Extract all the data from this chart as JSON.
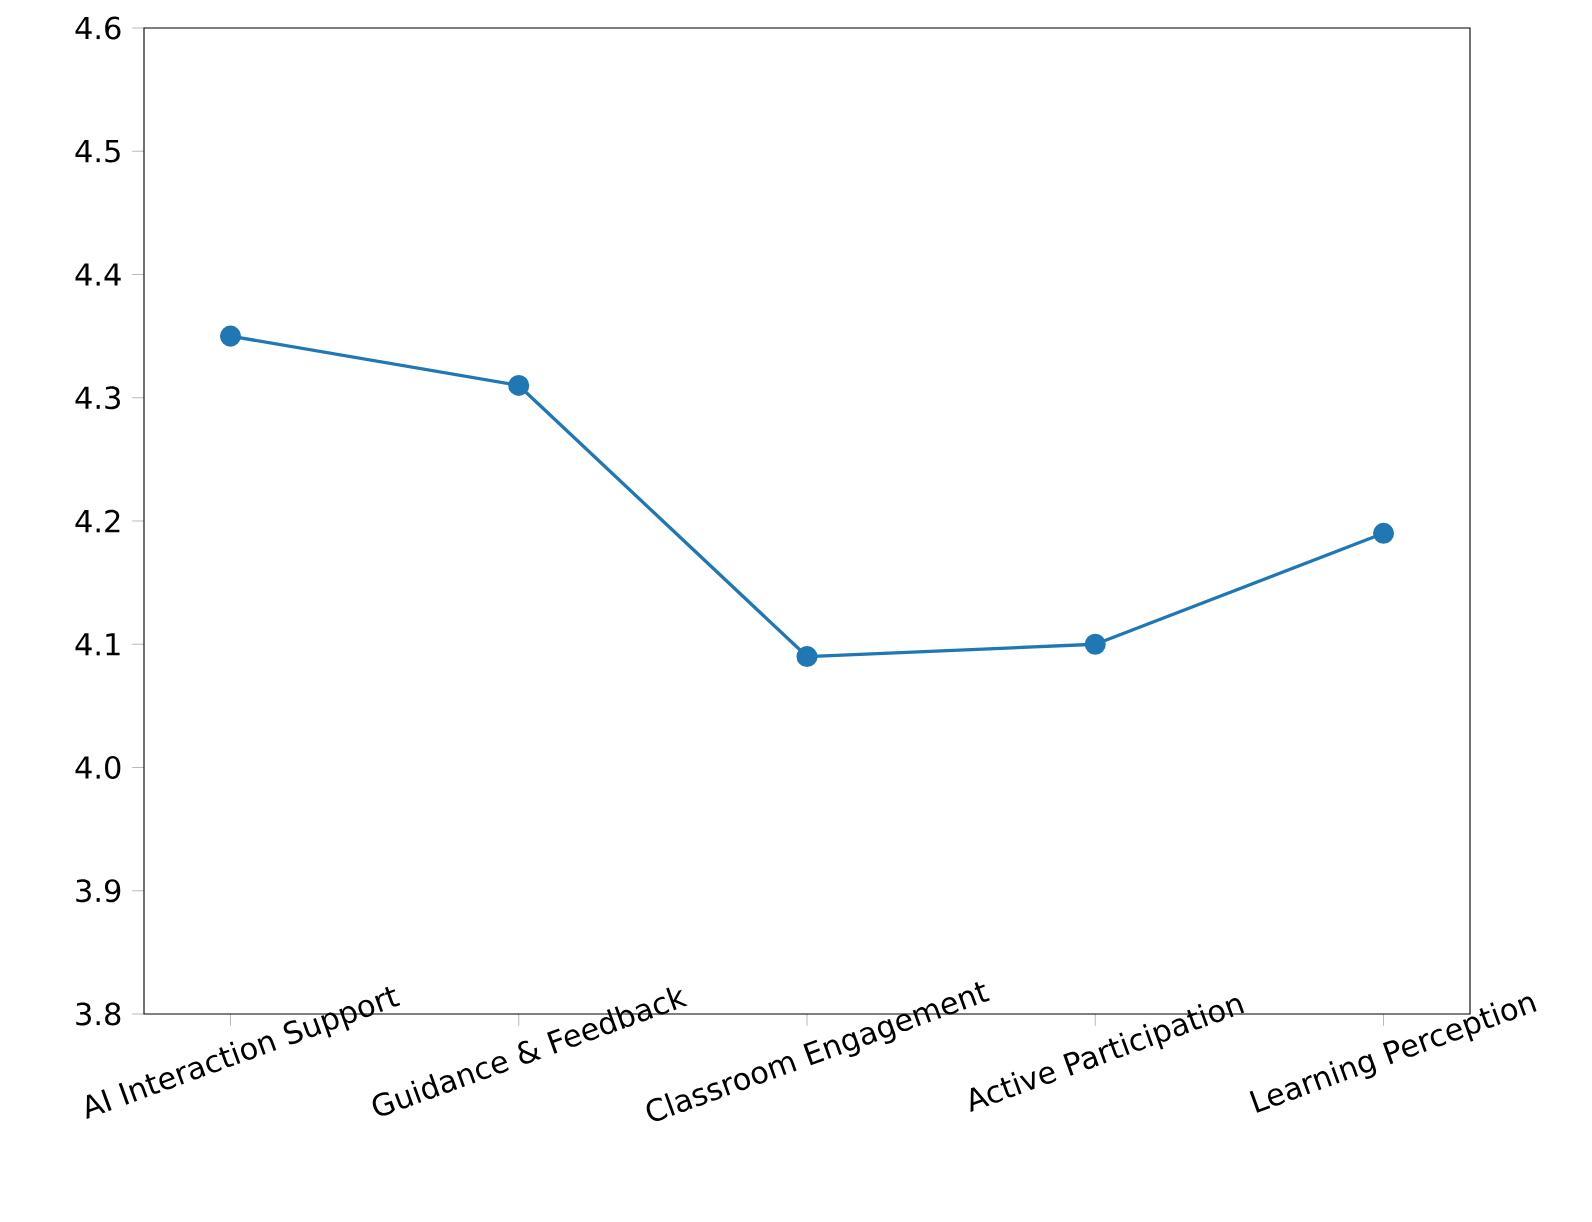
{
  "chart_data": {
    "type": "line",
    "categories": [
      "AI Interaction Support",
      "Guidance & Feedback",
      "Classroom Engagement",
      "Active Participation",
      "Learning Perception"
    ],
    "series": [
      {
        "color": "#1f77b4",
        "values": [
          4.35,
          4.31,
          4.09,
          4.1,
          4.19
        ]
      }
    ],
    "ylim": [
      3.8,
      4.6
    ],
    "yticks": [
      3.8,
      3.9,
      {
        "value": 4.0,
        "label": "4.0"
      },
      4.1,
      4.2,
      4.3,
      4.4,
      4.5,
      4.6
    ],
    "marker": "circle",
    "line_style": "solid"
  }
}
